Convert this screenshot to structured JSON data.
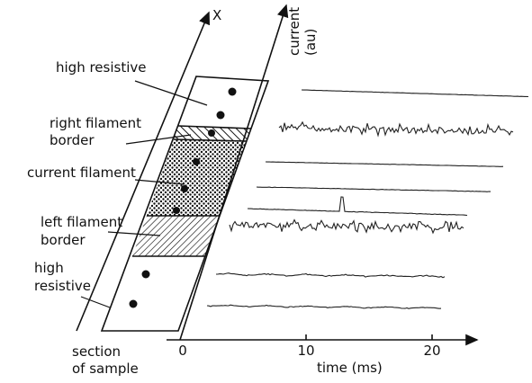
{
  "sample": {
    "axis_label": "X",
    "caption": [
      "section",
      "of sample"
    ],
    "regions": [
      {
        "label": [
          "high resistive"
        ]
      },
      {
        "label": [
          "right filament",
          "border"
        ]
      },
      {
        "label": [
          "current filament"
        ]
      },
      {
        "label": [
          "left filament",
          "border"
        ]
      },
      {
        "label": [
          "high",
          "resistive"
        ]
      }
    ]
  },
  "current_axis": {
    "label": [
      "current",
      "(au)"
    ]
  },
  "time_axis": {
    "label": "time (ms)",
    "ticks": [
      0,
      10,
      20
    ]
  }
}
